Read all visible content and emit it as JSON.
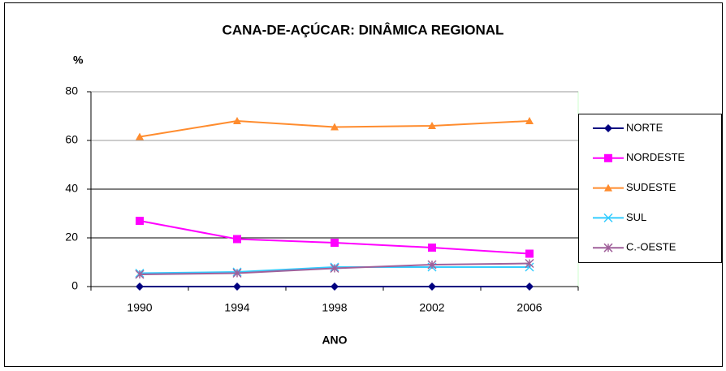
{
  "chart_data": {
    "type": "line",
    "title": "CANA-DE-AÇÚCAR: DINÂMICA  REGIONAL",
    "ylabel": "%",
    "xlabel": "ANO",
    "categories": [
      "1990",
      "1994",
      "1998",
      "2002",
      "2006"
    ],
    "series": [
      {
        "name": "NORTE",
        "color": "#000080",
        "marker": "diamond",
        "values": [
          0,
          0,
          0,
          0,
          0
        ]
      },
      {
        "name": "NORDESTE",
        "color": "#ff00ff",
        "marker": "square",
        "values": [
          27,
          19.5,
          18,
          16,
          13.5
        ]
      },
      {
        "name": "SUDESTE",
        "color": "#ff8c2e",
        "marker": "triangle",
        "values": [
          61.5,
          68,
          65.5,
          66,
          68
        ]
      },
      {
        "name": "SUL",
        "color": "#33ccff",
        "marker": "x",
        "values": [
          5.5,
          6,
          8,
          8,
          8
        ]
      },
      {
        "name": "C.-OESTE",
        "color": "#a0609a",
        "marker": "star",
        "values": [
          5,
          5.5,
          7.5,
          9,
          9.5
        ]
      }
    ],
    "ylim": [
      0,
      80
    ],
    "yticks": [
      0,
      20,
      40,
      60,
      80
    ],
    "grid": true,
    "legend": "right"
  }
}
